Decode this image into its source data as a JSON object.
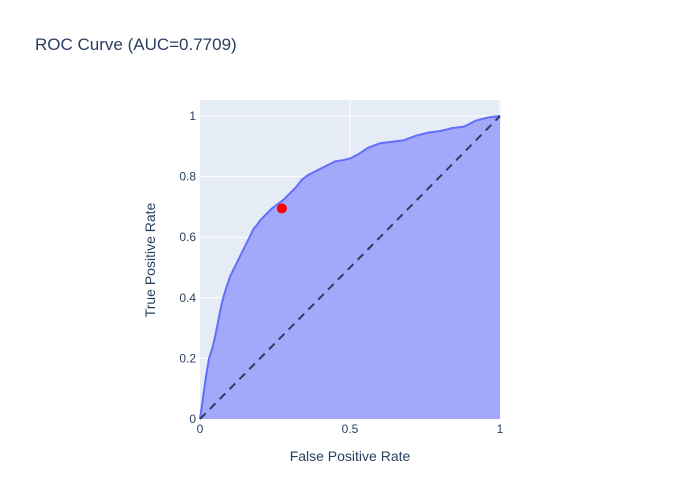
{
  "chart_data": {
    "type": "line",
    "title": "ROC Curve (AUC=0.7709)",
    "xlabel": "False Positive Rate",
    "ylabel": "True Positive Rate",
    "xlim": [
      0,
      1
    ],
    "ylim": [
      0,
      1
    ],
    "x_ticks": [
      {
        "value": 0,
        "label": "0"
      },
      {
        "value": 0.5,
        "label": "0.5"
      },
      {
        "value": 1,
        "label": "1"
      }
    ],
    "y_ticks": [
      {
        "value": 0,
        "label": "0"
      },
      {
        "value": 0.2,
        "label": "0.2"
      },
      {
        "value": 0.4,
        "label": "0.4"
      },
      {
        "value": 0.6,
        "label": "0.6"
      },
      {
        "value": 0.8,
        "label": "0.8"
      },
      {
        "value": 1,
        "label": "1"
      }
    ],
    "grid": true,
    "legend": "none",
    "series": [
      {
        "kind": "roc-curve",
        "fill": "tozeroy",
        "color": "#636efa",
        "fill_color": "#a3a9fa",
        "x": [
          0,
          0.01,
          0.02,
          0.03,
          0.04,
          0.05,
          0.06,
          0.07,
          0.08,
          0.09,
          0.1,
          0.11,
          0.12,
          0.13,
          0.14,
          0.15,
          0.16,
          0.17,
          0.18,
          0.19,
          0.2,
          0.22,
          0.24,
          0.26,
          0.28,
          0.3,
          0.32,
          0.34,
          0.36,
          0.38,
          0.4,
          0.42,
          0.45,
          0.48,
          0.5,
          0.53,
          0.56,
          0.6,
          0.64,
          0.68,
          0.72,
          0.76,
          0.8,
          0.84,
          0.88,
          0.92,
          0.96,
          1.0
        ],
        "y": [
          0,
          0.07,
          0.14,
          0.2,
          0.23,
          0.27,
          0.32,
          0.37,
          0.41,
          0.44,
          0.47,
          0.49,
          0.51,
          0.53,
          0.55,
          0.57,
          0.59,
          0.61,
          0.63,
          0.64,
          0.655,
          0.675,
          0.695,
          0.71,
          0.725,
          0.745,
          0.765,
          0.79,
          0.805,
          0.815,
          0.825,
          0.835,
          0.85,
          0.855,
          0.86,
          0.875,
          0.895,
          0.91,
          0.915,
          0.92,
          0.935,
          0.945,
          0.95,
          0.96,
          0.965,
          0.985,
          0.995,
          1.0
        ]
      },
      {
        "kind": "chance-line",
        "color": "#2a3f5f",
        "dash": "dash",
        "x": [
          0,
          1
        ],
        "y": [
          0,
          1
        ]
      },
      {
        "kind": "optimal-point",
        "color": "#ff0000",
        "x": [
          0.273
        ],
        "y": [
          0.695
        ]
      }
    ]
  }
}
